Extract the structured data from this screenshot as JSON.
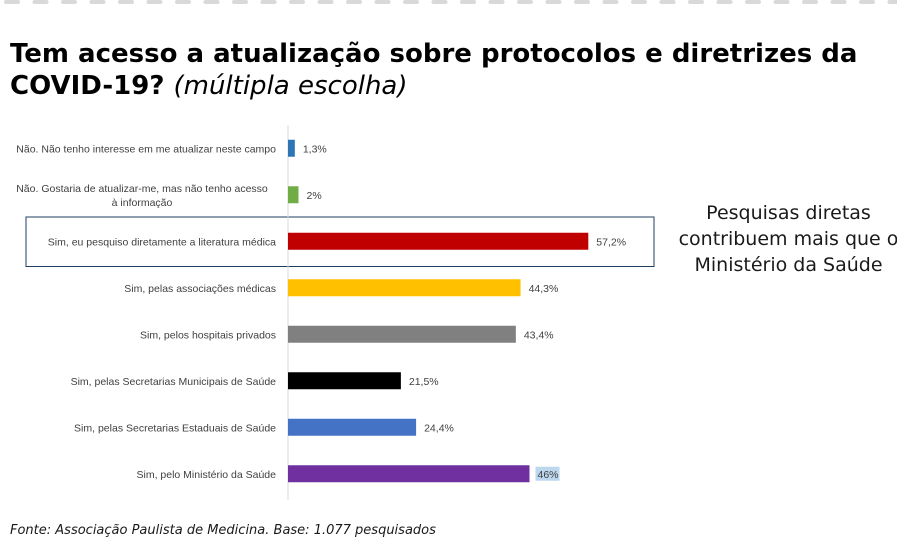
{
  "title": {
    "main": "Tem acesso a atualização sobre protocolos e diretrizes da COVID-19?",
    "subtitle": "(múltipla escolha)"
  },
  "chart_data": {
    "type": "bar",
    "orientation": "horizontal",
    "categories": [
      "Não. Não tenho interesse em me atualizar neste campo",
      "Não. Gostaria de atualizar-me, mas não tenho acesso à informação",
      "Sim, eu pesquiso diretamente a literatura médica",
      "Sim, pelas associações médicas",
      "Sim, pelos hospitais privados",
      "Sim, pelas Secretarias Municipais de Saúde",
      "Sim, pelas Secretarias Estaduais de Saúde",
      "Sim, pelo Ministério da Saúde"
    ],
    "values": [
      1.3,
      2,
      57.2,
      44.3,
      43.4,
      21.5,
      24.4,
      46
    ],
    "value_labels": [
      "1,3%",
      "2%",
      "57,2%",
      "44,3%",
      "43,4%",
      "21,5%",
      "24,4%",
      "46%"
    ],
    "colors": [
      "#2e75b6",
      "#70ad47",
      "#c00000",
      "#ffc000",
      "#808080",
      "#000000",
      "#4472c4",
      "#7030a0"
    ],
    "xlim": [
      0,
      60
    ],
    "grid": false,
    "highlighted_category_index": 2,
    "highlight_box_color": "#1f3f5f"
  },
  "side_note": "Pesquisas diretas contribuem mais que o Ministério da Saúde",
  "source": "Fonte: Associação Paulista de Medicina. Base: 1.077 pesquisados",
  "colors": {
    "axis": "#d9d9d9",
    "dashes": "#d9d9d9"
  }
}
